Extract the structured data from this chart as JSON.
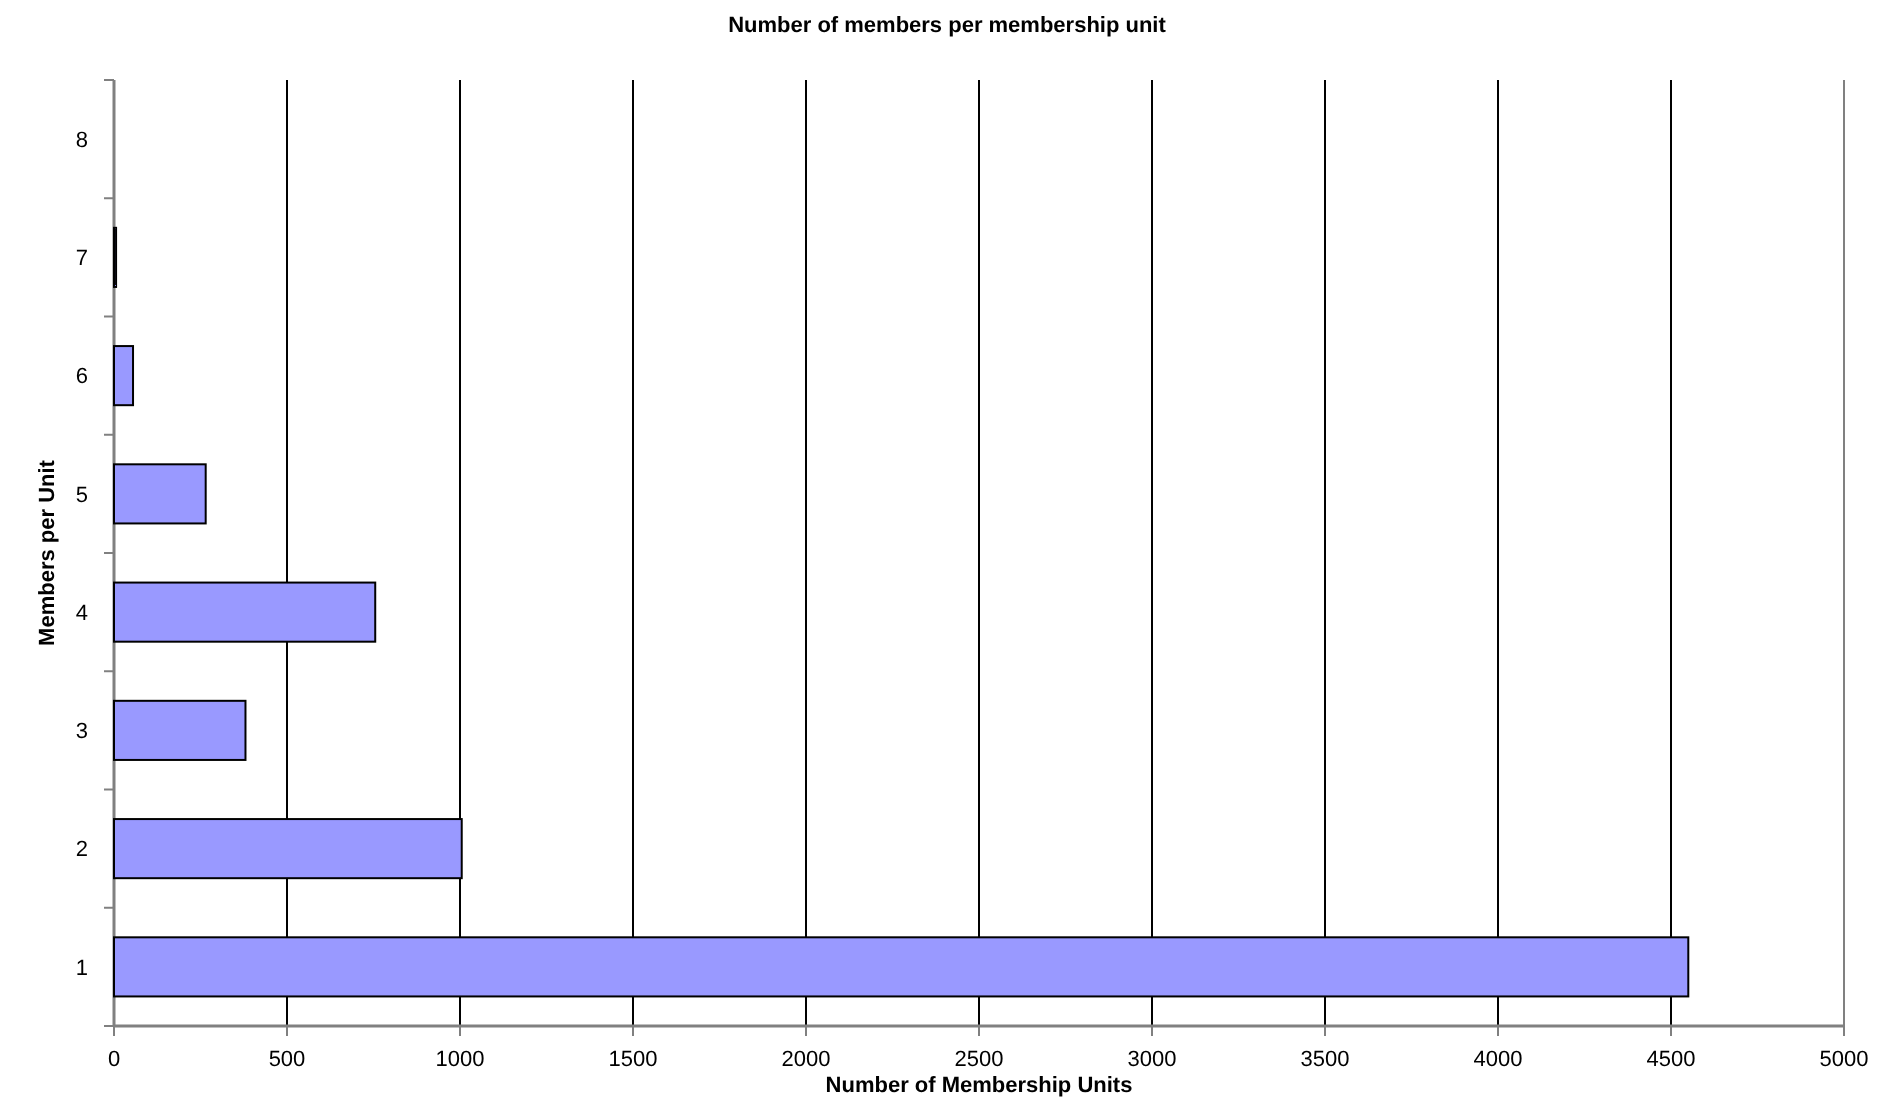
{
  "chart_data": {
    "type": "bar",
    "orientation": "horizontal",
    "title": "Number of members per membership unit",
    "xlabel": "Number of Membership Units",
    "ylabel": "Members per Unit",
    "categories": [
      "8",
      "7",
      "6",
      "5",
      "4",
      "3",
      "2",
      "1"
    ],
    "values": [
      0,
      6,
      55,
      265,
      755,
      380,
      1005,
      4550
    ],
    "color": "#9999ff",
    "xlim": [
      0,
      5000
    ],
    "xticks": [
      0,
      500,
      1000,
      1500,
      2000,
      2500,
      3000,
      3500,
      4000,
      4500,
      5000
    ],
    "grid": "x"
  }
}
